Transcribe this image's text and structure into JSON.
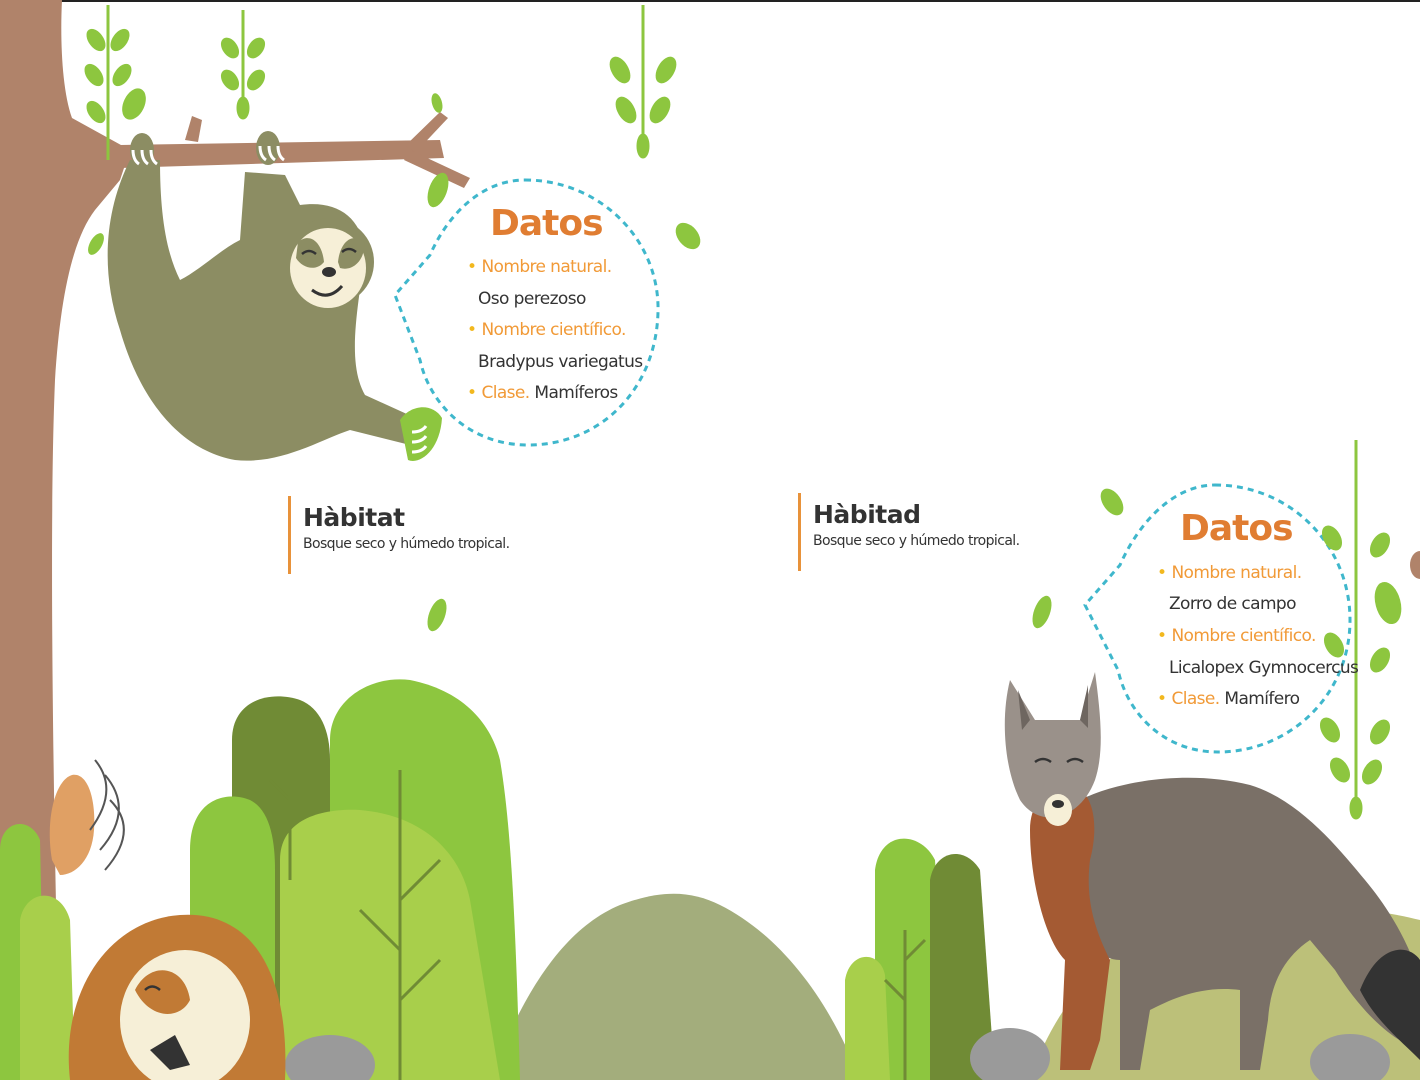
{
  "colors": {
    "accent_orange": "#e07d32",
    "label_orange": "#f19a37",
    "bullet_yellow": "#f2b81e",
    "dashed_border": "#3fb7cc",
    "leaf_green": "#8dc63f",
    "trunk_brown": "#b0836a"
  },
  "sloth_card": {
    "title": "Datos",
    "items": [
      {
        "label": "Nombre natural.",
        "value": ""
      },
      {
        "label": "",
        "value": "Oso perezoso"
      },
      {
        "label": "Nombre científico.",
        "value": ""
      },
      {
        "label": "",
        "value": "Bradypus variegatus"
      },
      {
        "label": "Clase.",
        "value": "Mamíferos"
      }
    ]
  },
  "sloth_habitat": {
    "title": "Hàbitat",
    "text": "Bosque seco y húmedo tropical."
  },
  "fox_habitat": {
    "title": "Hàbitad",
    "text": "Bosque seco y húmedo tropical."
  },
  "fox_card": {
    "title": "Datos",
    "items": [
      {
        "label": "Nombre natural.",
        "value": ""
      },
      {
        "label": "",
        "value": "Zorro de campo"
      },
      {
        "label": "Nombre científico.",
        "value": ""
      },
      {
        "label": "",
        "value": "Licalopex Gymnocercus"
      },
      {
        "label": "Clase.",
        "value": "Mamífero"
      }
    ]
  }
}
